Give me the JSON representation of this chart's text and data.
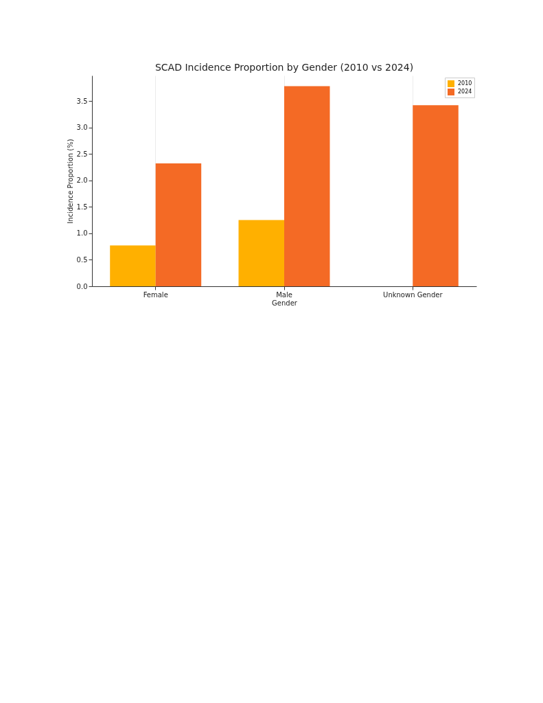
{
  "chart_data": {
    "type": "bar",
    "title": "SCAD Incidence Proportion by Gender (2010 vs 2024)",
    "xlabel": "Gender",
    "ylabel": "Incidence Proportion (%)",
    "categories": [
      "Female",
      "Male",
      "Unknown Gender"
    ],
    "series": [
      {
        "name": "2010",
        "color": "#ffb000",
        "values": [
          0.77,
          1.25,
          null
        ]
      },
      {
        "name": "2024",
        "color": "#f46a25",
        "values": [
          2.32,
          3.78,
          3.42
        ]
      }
    ],
    "ylim": [
      0,
      3.98
    ],
    "yticks": [
      {
        "value": 0,
        "label": "0.0"
      },
      0.5,
      {
        "value": 1,
        "label": "1.0"
      },
      1.5,
      {
        "value": 2,
        "label": "2.0"
      },
      2.5,
      {
        "value": 3,
        "label": "3.0"
      },
      3.5
    ],
    "grid": "x",
    "legend": "top right"
  }
}
